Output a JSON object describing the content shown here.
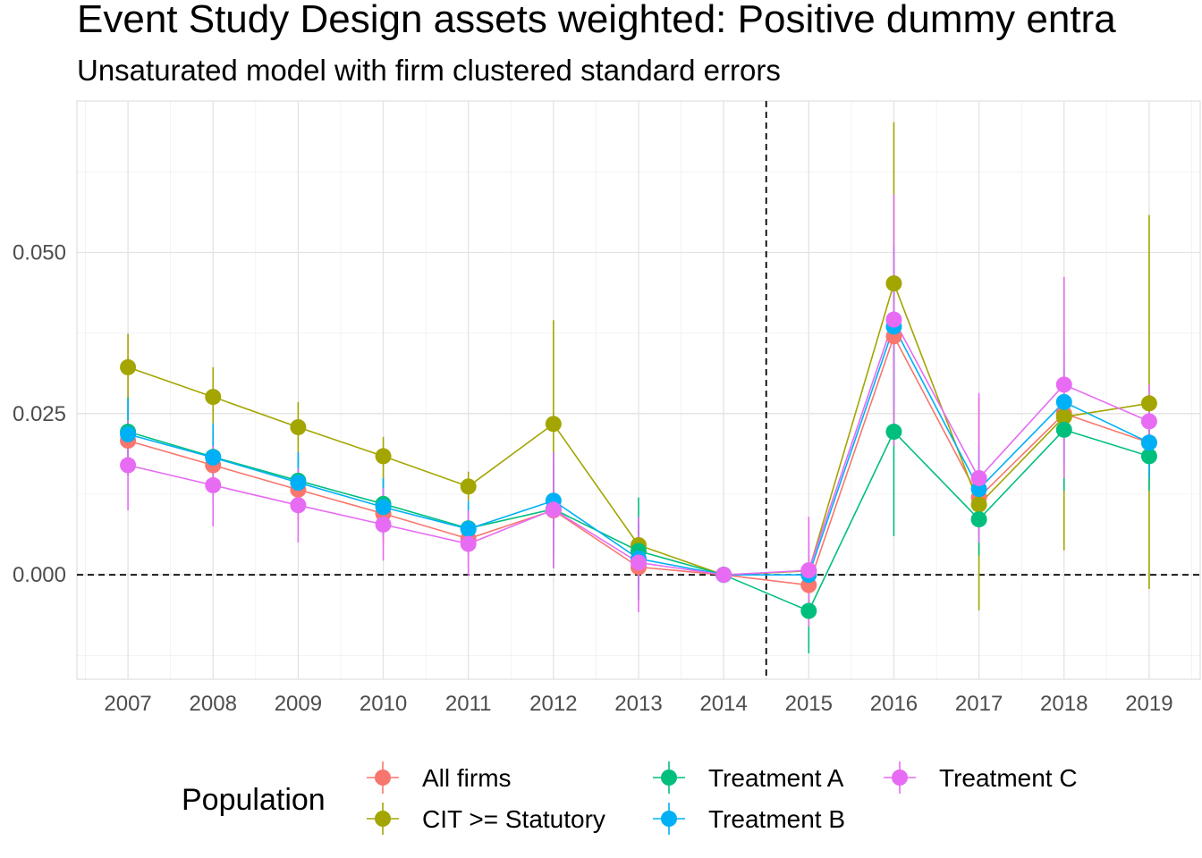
{
  "chart_data": {
    "type": "line",
    "title": "Event Study Design assets weighted: Positive dummy entra",
    "subtitle": "Unsaturated model with firm clustered standard errors",
    "xlabel": "",
    "ylabel": "",
    "x": [
      2007,
      2008,
      2009,
      2010,
      2011,
      2012,
      2013,
      2014,
      2015,
      2016,
      2017,
      2018,
      2019
    ],
    "xtick_labels": [
      "2007",
      "2008",
      "2009",
      "2010",
      "2011",
      "2012",
      "2013",
      "2014",
      "2015",
      "2016",
      "2017",
      "2018",
      "2019"
    ],
    "ytick_values": [
      0.0,
      0.025,
      0.05
    ],
    "ytick_labels": [
      "0.000",
      "0.025",
      "0.050"
    ],
    "ylim": [
      -0.0162,
      0.0735
    ],
    "xlim": [
      2006.4,
      2019.6
    ],
    "grid": true,
    "reference_lines": {
      "vertical_x": 2014.5,
      "horizontal_y": 0.0,
      "style": "dashed"
    },
    "legend": {
      "title": "Population",
      "position": "bottom"
    },
    "series": [
      {
        "name": "All firms",
        "color": "#F8766D",
        "values": [
          0.0208,
          0.017,
          0.0132,
          0.0095,
          0.0056,
          0.01,
          0.0012,
          0.0,
          -0.0016,
          0.037,
          0.012,
          0.025,
          0.0205
        ],
        "ci_low": [
          0.0155,
          0.012,
          0.0085,
          0.005,
          0.001,
          0.003,
          -0.003,
          0.0,
          -0.006,
          0.025,
          0.006,
          0.015,
          0.015
        ],
        "ci_high": [
          0.026,
          0.022,
          0.018,
          0.014,
          0.01,
          0.017,
          0.0055,
          0.0,
          0.003,
          0.049,
          0.018,
          0.035,
          0.026
        ]
      },
      {
        "name": "CIT >= Statutory",
        "color": "#A3A500",
        "values": [
          0.0322,
          0.0276,
          0.0229,
          0.0184,
          0.0137,
          0.0234,
          0.0046,
          0.0,
          0.0006,
          0.0452,
          0.0109,
          0.0245,
          0.0266
        ],
        "ci_low": [
          0.027,
          0.023,
          0.019,
          0.015,
          0.0115,
          0.008,
          0.001,
          0.0,
          -0.007,
          0.02,
          -0.0055,
          0.0038,
          -0.0022
        ],
        "ci_high": [
          0.0374,
          0.0322,
          0.0268,
          0.0214,
          0.016,
          0.0395,
          0.008,
          0.0,
          0.0085,
          0.0702,
          0.0275,
          0.0455,
          0.0558
        ]
      },
      {
        "name": "Treatment A",
        "color": "#00BF7D",
        "values": [
          0.0222,
          0.0183,
          0.0146,
          0.011,
          0.0072,
          0.0102,
          0.0037,
          0.0,
          -0.0056,
          0.0222,
          0.0086,
          0.0225,
          0.0184
        ],
        "ci_low": [
          0.017,
          0.0135,
          0.01,
          0.007,
          0.0035,
          0.001,
          -0.004,
          0.0,
          -0.0122,
          0.006,
          0.003,
          0.013,
          0.013
        ],
        "ci_high": [
          0.0275,
          0.023,
          0.019,
          0.015,
          0.011,
          0.019,
          0.012,
          0.0,
          0.0005,
          0.0385,
          0.014,
          0.032,
          0.024
        ]
      },
      {
        "name": "Treatment B",
        "color": "#00B0F6",
        "values": [
          0.0218,
          0.0182,
          0.0143,
          0.0105,
          0.0071,
          0.0115,
          0.0025,
          0.0,
          0.0,
          0.0385,
          0.0133,
          0.0268,
          0.0205
        ],
        "ci_low": [
          0.0165,
          0.013,
          0.0095,
          0.006,
          0.003,
          0.004,
          -0.002,
          0.0,
          -0.005,
          0.026,
          0.007,
          0.017,
          0.015
        ],
        "ci_high": [
          0.0272,
          0.0235,
          0.019,
          0.015,
          0.0115,
          0.019,
          0.008,
          0.0,
          0.005,
          0.051,
          0.02,
          0.0365,
          0.026
        ]
      },
      {
        "name": "Treatment C",
        "color": "#E76BF3",
        "values": [
          0.017,
          0.0139,
          0.0108,
          0.0078,
          0.0048,
          0.0101,
          0.0019,
          0.0,
          0.0007,
          0.0396,
          0.015,
          0.0295,
          0.0238
        ],
        "ci_low": [
          0.01,
          0.0075,
          0.005,
          0.0022,
          -0.0002,
          0.001,
          -0.0058,
          0.0,
          -0.008,
          0.02,
          0.005,
          0.015,
          0.018
        ],
        "ci_high": [
          0.024,
          0.02,
          0.0165,
          0.0135,
          0.01,
          0.019,
          0.009,
          0.0,
          0.009,
          0.059,
          0.0282,
          0.0462,
          0.0295
        ]
      }
    ]
  }
}
